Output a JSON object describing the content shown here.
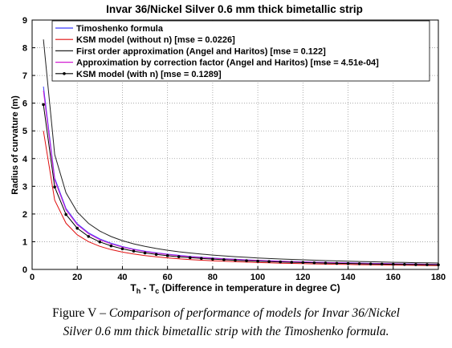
{
  "chart_data": {
    "type": "line",
    "title": "Invar 36/Nickel Silver 0.6 mm thick bimetallic strip",
    "xlabel_main": "T",
    "xlabel_sub_h": "h",
    "xlabel_mid": " - T",
    "xlabel_sub_c": "c",
    "xlabel_rest": " (Difference in temperature in degree C)",
    "ylabel": "Radius of curvature (m)",
    "xlim": [
      0,
      180
    ],
    "ylim": [
      0,
      9
    ],
    "xticks": [
      "0",
      "20",
      "40",
      "60",
      "80",
      "100",
      "120",
      "140",
      "160",
      "180"
    ],
    "yticks": [
      "0",
      "1",
      "2",
      "3",
      "4",
      "5",
      "6",
      "7",
      "8",
      "9"
    ],
    "grid": true,
    "legend_position": "top",
    "series": [
      {
        "name": "Timoshenko formula",
        "color": "#3a3aff",
        "marker": "none",
        "x": [
          5,
          10,
          15,
          20,
          25,
          30,
          35,
          40,
          45,
          50,
          55,
          60,
          65,
          70,
          75,
          80,
          85,
          90,
          95,
          100,
          105,
          110,
          115,
          120,
          125,
          130,
          135,
          140,
          145,
          150,
          155,
          160,
          165,
          170,
          175,
          180
        ],
        "y": [
          6.6,
          3.3,
          2.2,
          1.65,
          1.32,
          1.1,
          0.943,
          0.825,
          0.733,
          0.66,
          0.6,
          0.55,
          0.508,
          0.471,
          0.44,
          0.413,
          0.388,
          0.367,
          0.347,
          0.33,
          0.314,
          0.3,
          0.287,
          0.275,
          0.264,
          0.254,
          0.244,
          0.236,
          0.228,
          0.22,
          0.213,
          0.206,
          0.2,
          0.194,
          0.189,
          0.183
        ]
      },
      {
        "name": "KSM model (without n) [mse = 0.0226]",
        "color": "#e01010",
        "marker": "none",
        "x": [
          5,
          10,
          15,
          20,
          25,
          30,
          35,
          40,
          45,
          50,
          55,
          60,
          65,
          70,
          75,
          80,
          85,
          90,
          95,
          100,
          105,
          110,
          115,
          120,
          125,
          130,
          135,
          140,
          145,
          150,
          155,
          160,
          165,
          170,
          175,
          180
        ],
        "y": [
          5.0,
          2.5,
          1.667,
          1.25,
          1.0,
          0.833,
          0.714,
          0.625,
          0.556,
          0.5,
          0.455,
          0.417,
          0.385,
          0.357,
          0.333,
          0.313,
          0.294,
          0.278,
          0.263,
          0.25,
          0.238,
          0.227,
          0.217,
          0.208,
          0.2,
          0.192,
          0.185,
          0.179,
          0.172,
          0.167,
          0.161,
          0.156,
          0.152,
          0.147,
          0.143,
          0.139
        ]
      },
      {
        "name": "First order approximation (Angel and Haritos) [mse = 0.122]",
        "color": "#222222",
        "marker": "none",
        "x": [
          5,
          10,
          15,
          20,
          25,
          30,
          35,
          40,
          45,
          50,
          55,
          60,
          65,
          70,
          75,
          80,
          85,
          90,
          95,
          100,
          105,
          110,
          115,
          120,
          125,
          130,
          135,
          140,
          145,
          150,
          155,
          160,
          165,
          170,
          175,
          180
        ],
        "y": [
          8.3,
          4.15,
          2.767,
          2.075,
          1.66,
          1.383,
          1.186,
          1.038,
          0.922,
          0.83,
          0.755,
          0.692,
          0.638,
          0.593,
          0.553,
          0.519,
          0.488,
          0.461,
          0.437,
          0.415,
          0.395,
          0.377,
          0.361,
          0.346,
          0.332,
          0.319,
          0.307,
          0.296,
          0.286,
          0.277,
          0.268,
          0.259,
          0.252,
          0.244,
          0.237,
          0.231
        ]
      },
      {
        "name": "Approximation by correction factor (Angel and Haritos) [mse = 4.51e-04]",
        "color": "#d21ed2",
        "marker": "none",
        "x": [
          5,
          10,
          15,
          20,
          25,
          30,
          35,
          40,
          45,
          50,
          55,
          60,
          65,
          70,
          75,
          80,
          85,
          90,
          95,
          100,
          105,
          110,
          115,
          120,
          125,
          130,
          135,
          140,
          145,
          150,
          155,
          160,
          165,
          170,
          175,
          180
        ],
        "y": [
          6.45,
          3.225,
          2.15,
          1.613,
          1.29,
          1.075,
          0.921,
          0.806,
          0.717,
          0.645,
          0.586,
          0.538,
          0.496,
          0.461,
          0.43,
          0.403,
          0.379,
          0.358,
          0.339,
          0.323,
          0.307,
          0.293,
          0.28,
          0.269,
          0.258,
          0.248,
          0.239,
          0.23,
          0.222,
          0.215,
          0.208,
          0.202,
          0.195,
          0.19,
          0.184,
          0.179
        ]
      },
      {
        "name": "KSM model (with n) [mse = 0.1289]",
        "color": "#000000",
        "marker": "dot",
        "x": [
          5,
          10,
          15,
          20,
          25,
          30,
          35,
          40,
          45,
          50,
          55,
          60,
          65,
          70,
          75,
          80,
          85,
          90,
          95,
          100,
          105,
          110,
          115,
          120,
          125,
          130,
          135,
          140,
          145,
          150,
          155,
          160,
          165,
          170,
          175,
          180
        ],
        "y": [
          5.95,
          2.975,
          1.983,
          1.488,
          1.19,
          0.992,
          0.85,
          0.744,
          0.661,
          0.595,
          0.541,
          0.496,
          0.458,
          0.425,
          0.397,
          0.372,
          0.35,
          0.331,
          0.313,
          0.298,
          0.283,
          0.27,
          0.259,
          0.248,
          0.238,
          0.229,
          0.22,
          0.213,
          0.205,
          0.198,
          0.192,
          0.186,
          0.18,
          0.175,
          0.17,
          0.165
        ]
      }
    ]
  },
  "caption": {
    "label": "Figure V",
    "line1_text": " – Comparison of performance of models for Invar 36/Nickel",
    "line2_text": "Silver 0.6 mm thick bimetallic strip with the Timoshenko formula."
  }
}
